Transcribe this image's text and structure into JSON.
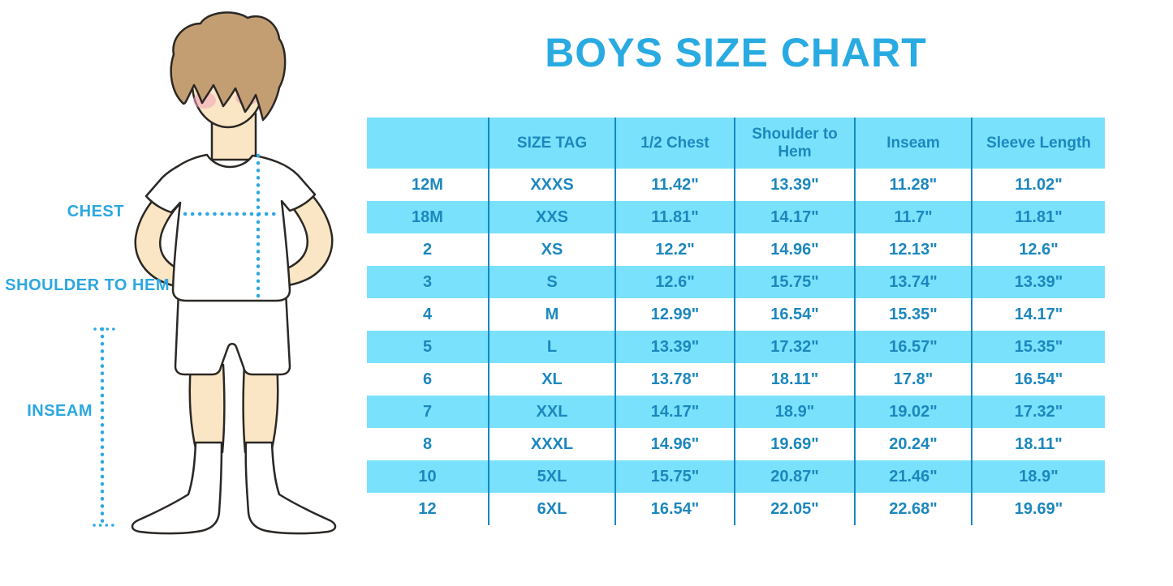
{
  "figure": {
    "labels": {
      "chest": "CHEST",
      "shoulder_to_hem": "SHOULDER TO HEM",
      "inseam": "INSEAM"
    }
  },
  "chart_data": {
    "type": "table",
    "title": "BOYS SIZE CHART",
    "columns": [
      "",
      "SIZE TAG",
      "1/2 Chest",
      "Shoulder to Hem",
      "Inseam",
      "Sleeve Length"
    ],
    "rows": [
      [
        "12M",
        "XXXS",
        "11.42\"",
        "13.39\"",
        "11.28\"",
        "11.02\""
      ],
      [
        "18M",
        "XXS",
        "11.81\"",
        "14.17\"",
        "11.7\"",
        "11.81\""
      ],
      [
        "2",
        "XS",
        "12.2\"",
        "14.96\"",
        "12.13\"",
        "12.6\""
      ],
      [
        "3",
        "S",
        "12.6\"",
        "15.75\"",
        "13.74\"",
        "13.39\""
      ],
      [
        "4",
        "M",
        "12.99\"",
        "16.54\"",
        "15.35\"",
        "14.17\""
      ],
      [
        "5",
        "L",
        "13.39\"",
        "17.32\"",
        "16.57\"",
        "15.35\""
      ],
      [
        "6",
        "XL",
        "13.78\"",
        "18.11\"",
        "17.8\"",
        "16.54\""
      ],
      [
        "7",
        "XXL",
        "14.17\"",
        "18.9\"",
        "19.02\"",
        "17.32\""
      ],
      [
        "8",
        "XXXL",
        "14.96\"",
        "19.69\"",
        "20.24\"",
        "18.11\""
      ],
      [
        "10",
        "5XL",
        "15.75\"",
        "20.87\"",
        "21.46\"",
        "18.9\""
      ],
      [
        "12",
        "6XL",
        "16.54\"",
        "22.05\"",
        "22.68\"",
        "19.69\""
      ]
    ],
    "layout": {
      "stripe_pattern": "header cyan, data rows alternate white/cyan starting white",
      "column_dividers": true,
      "outer_border": false
    }
  },
  "colors": {
    "stripe_cyan": "#7ae1fc",
    "table_text_blue": "#1c87bd",
    "divider_blue": "#1787c0",
    "title_blue": "#29abe2",
    "measurement_label_blue": "#2ba7e0",
    "dotted_line_blue": "#2fa8e0",
    "skin": "#fae6c4",
    "hair_brown": "#c49e73"
  }
}
